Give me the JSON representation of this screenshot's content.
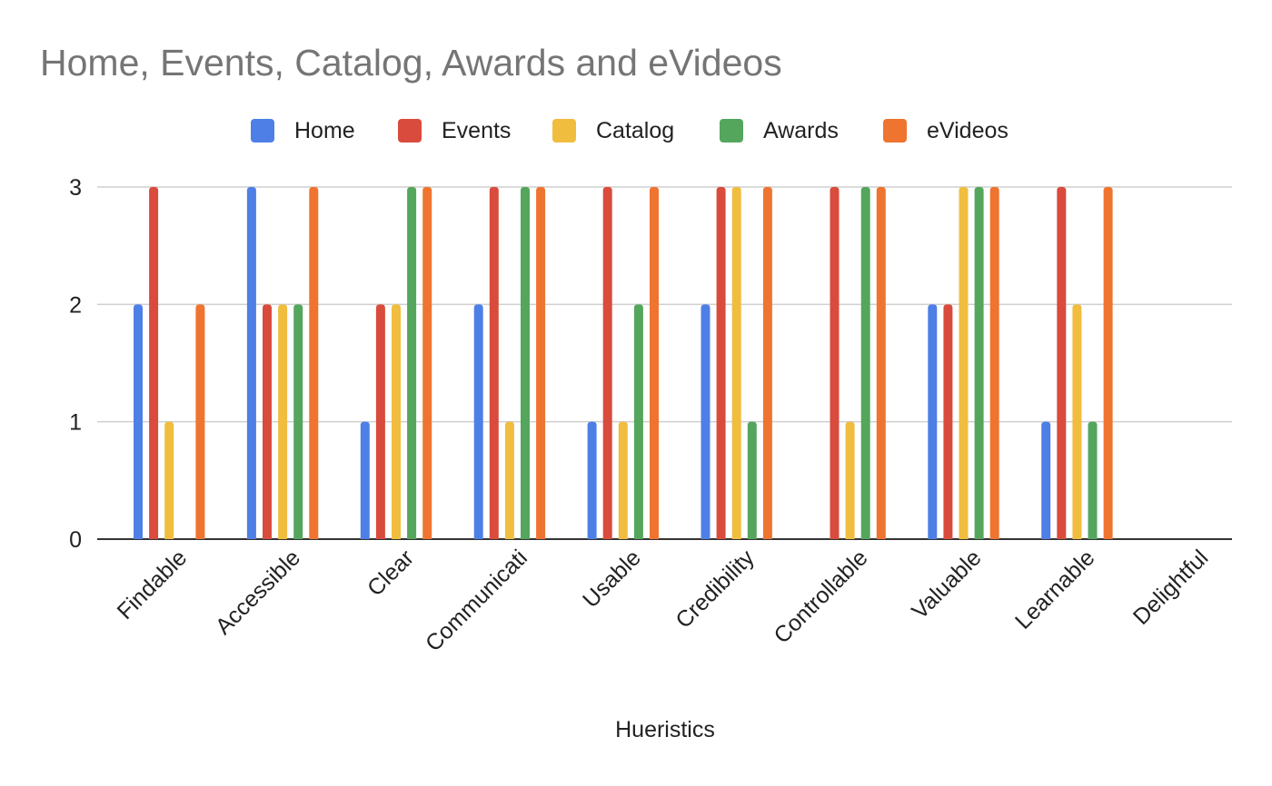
{
  "chart_data": {
    "type": "bar",
    "title": "Home, Events, Catalog, Awards and eVideos",
    "xlabel": "Hueristics",
    "ylabel": "",
    "ylim": [
      0,
      3
    ],
    "yticks": [
      "0",
      "1",
      "2",
      "3"
    ],
    "grid": true,
    "legend_position": "top",
    "categories": [
      "Findable",
      "Accessible",
      "Clear",
      "Communicati",
      "Usable",
      "Credibility",
      "Controllable",
      "Valuable",
      "Learnable",
      "Delightful"
    ],
    "series": [
      {
        "name": "Home",
        "color": "#4e7fe6",
        "values": [
          2,
          3,
          1,
          2,
          1,
          2,
          0,
          2,
          1,
          0
        ]
      },
      {
        "name": "Events",
        "color": "#d94b3c",
        "values": [
          3,
          2,
          2,
          3,
          3,
          3,
          3,
          2,
          3,
          0
        ]
      },
      {
        "name": "Catalog",
        "color": "#f0bd3f",
        "values": [
          1,
          2,
          2,
          1,
          1,
          3,
          1,
          3,
          2,
          0
        ]
      },
      {
        "name": "Awards",
        "color": "#54a65d",
        "values": [
          0,
          2,
          3,
          3,
          2,
          1,
          3,
          3,
          1,
          0
        ]
      },
      {
        "name": "eVideos",
        "color": "#ee7430",
        "values": [
          2,
          3,
          3,
          3,
          3,
          3,
          3,
          3,
          3,
          0
        ]
      }
    ]
  }
}
